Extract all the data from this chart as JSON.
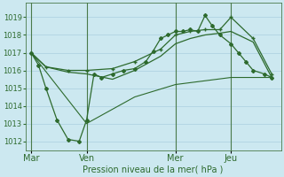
{
  "xlabel": "Pression niveau de la mer( hPa )",
  "bg_color": "#cce8f0",
  "line_color": "#2d6a2d",
  "grid_color": "#aacfdf",
  "ylim": [
    1011.5,
    1019.8
  ],
  "yticks": [
    1012,
    1013,
    1014,
    1015,
    1016,
    1017,
    1018,
    1019
  ],
  "day_labels": [
    "Mar",
    "Ven",
    "Mer",
    "Jeu"
  ],
  "day_positions": [
    0,
    30,
    78,
    108
  ],
  "xlim": [
    -3,
    135
  ],
  "line1_x": [
    0,
    4,
    8,
    14,
    20,
    26,
    30,
    34,
    38,
    44,
    50,
    56,
    62,
    66,
    70,
    74,
    78,
    82,
    86,
    90,
    94,
    98,
    102,
    108,
    112,
    116,
    120,
    126,
    130
  ],
  "line1_y": [
    1017.0,
    1016.3,
    1015.0,
    1013.2,
    1012.1,
    1012.0,
    1013.2,
    1015.8,
    1015.6,
    1015.8,
    1016.0,
    1016.1,
    1016.5,
    1017.1,
    1017.8,
    1018.0,
    1018.2,
    1018.2,
    1018.3,
    1018.2,
    1019.1,
    1018.5,
    1018.0,
    1017.5,
    1017.0,
    1016.5,
    1016.0,
    1015.8,
    1015.6
  ],
  "line2_x": [
    0,
    8,
    20,
    30,
    44,
    56,
    70,
    78,
    86,
    94,
    102,
    108,
    120,
    130
  ],
  "line2_y": [
    1017.0,
    1016.2,
    1016.0,
    1016.0,
    1016.1,
    1016.5,
    1017.2,
    1018.0,
    1018.2,
    1018.3,
    1018.3,
    1019.0,
    1017.8,
    1015.8
  ],
  "line3_x": [
    0,
    8,
    20,
    30,
    44,
    56,
    70,
    78,
    86,
    94,
    102,
    108,
    120,
    130
  ],
  "line3_y": [
    1017.0,
    1016.2,
    1015.9,
    1015.8,
    1015.5,
    1016.0,
    1016.8,
    1017.5,
    1017.8,
    1018.0,
    1018.1,
    1018.2,
    1017.6,
    1015.6
  ],
  "line4_x": [
    0,
    30,
    56,
    78,
    108,
    130
  ],
  "line4_y": [
    1017.0,
    1013.0,
    1014.5,
    1015.2,
    1015.6,
    1015.6
  ]
}
